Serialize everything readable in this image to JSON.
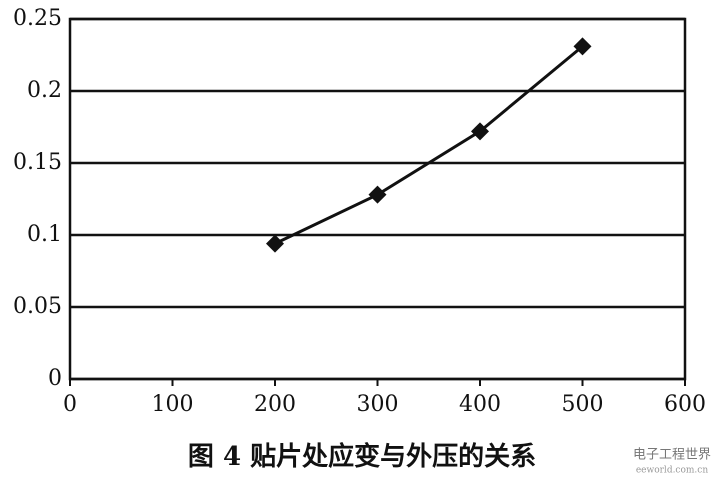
{
  "chart_data": {
    "type": "line",
    "title": "图 4  贴片处应变与外压的关系",
    "watermark": "电子工程世界",
    "watermark_url": "eeworld.com.cn",
    "x": [
      200,
      300,
      400,
      500
    ],
    "series": [
      {
        "color": "#111111",
        "values": [
          0.094,
          0.128,
          0.172,
          0.231
        ]
      }
    ],
    "xlim": [
      0,
      600
    ],
    "xticks": [
      0,
      100,
      200,
      300,
      400,
      500,
      600
    ],
    "ylim": [
      0,
      0.25
    ],
    "yticks": [
      0,
      0.05,
      0.1,
      0.15,
      0.2,
      0.25
    ],
    "grid": true
  }
}
